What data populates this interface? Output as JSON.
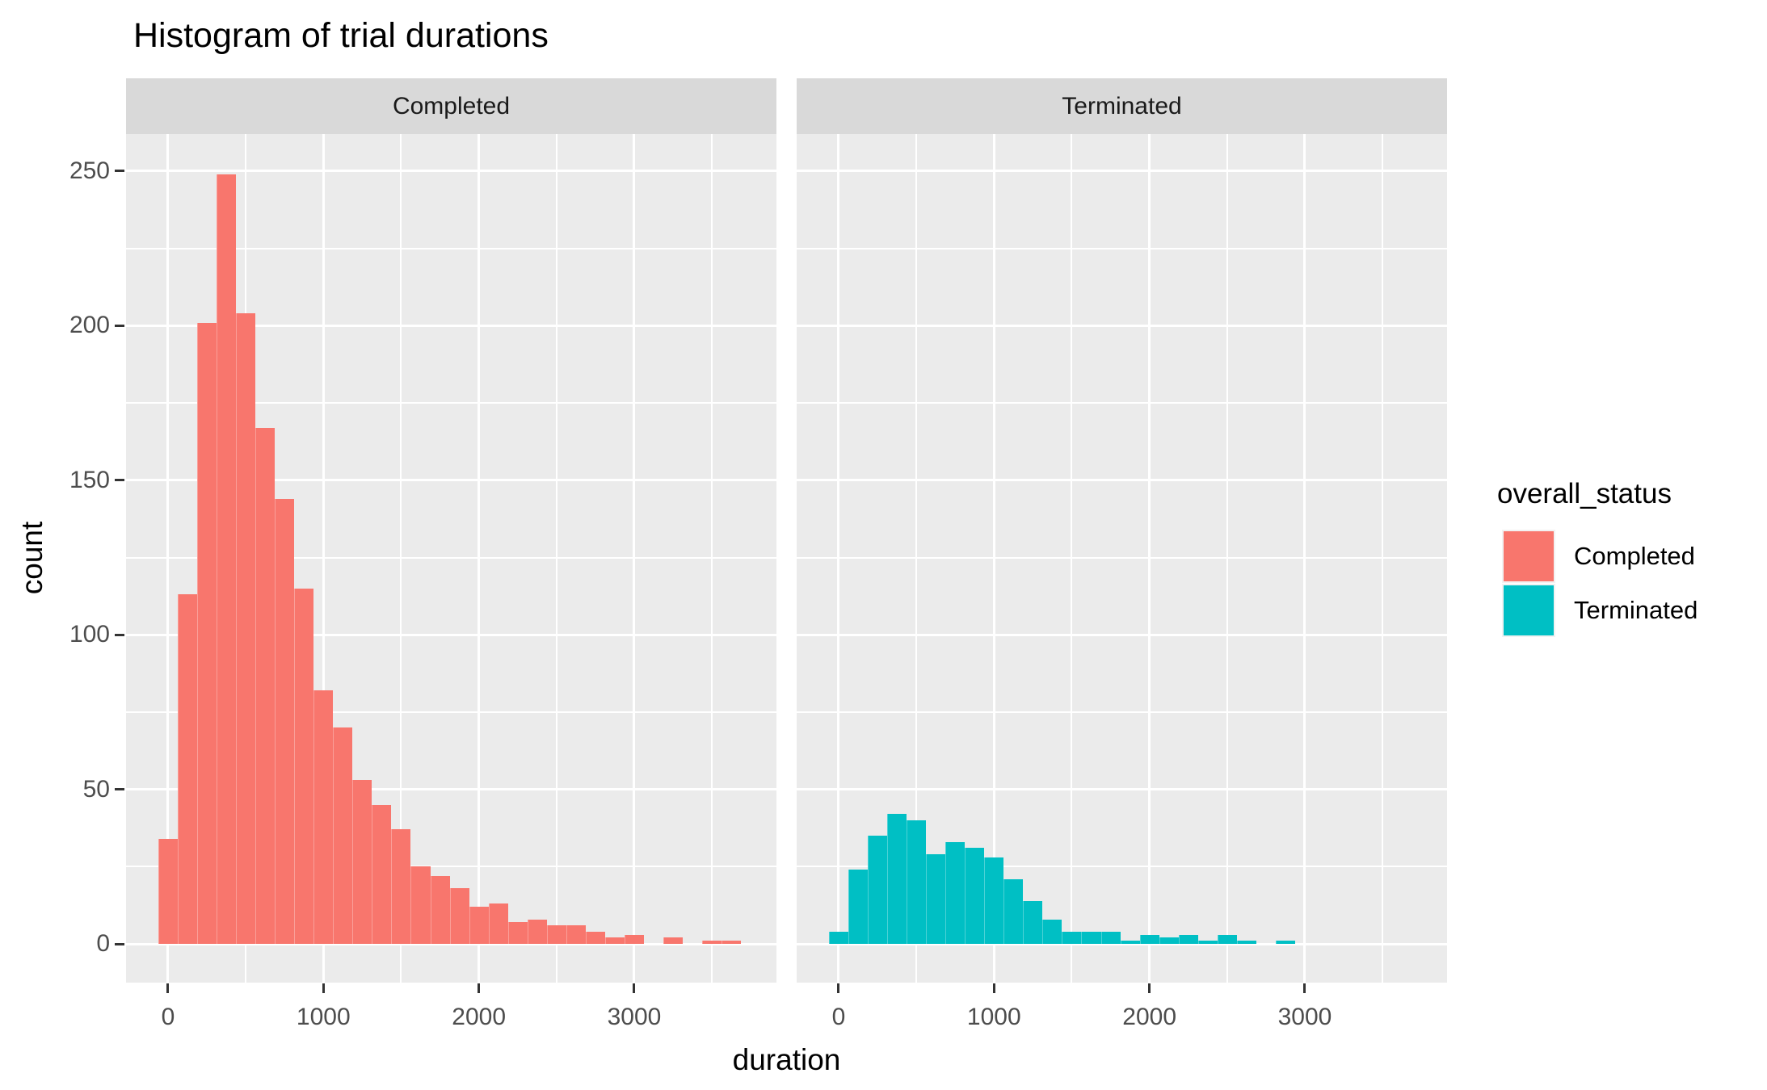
{
  "title": "Histogram of trial durations",
  "axes": {
    "x_title": "duration",
    "y_title": "count"
  },
  "strips": [
    "Completed",
    "Terminated"
  ],
  "legend": {
    "title": "overall_status",
    "entries": [
      {
        "label": "Completed",
        "color": "#F8766D"
      },
      {
        "label": "Terminated",
        "color": "#00BFC4"
      }
    ]
  },
  "colors": {
    "panel_background": "#EBEBEB",
    "strip_background": "#D9D9D9",
    "grid": "#FFFFFF",
    "tick_label": "#4D4D4D",
    "tick_mark": "#333333",
    "text": "#000000"
  },
  "chart_data": {
    "type": "bar",
    "subtype": "faceted-histogram",
    "title": "Histogram of trial durations",
    "xlabel": "duration",
    "ylabel": "count",
    "facet_variable": "overall_status",
    "facets": [
      "Completed",
      "Terminated"
    ],
    "binwidth": 125,
    "bin_centers": [
      0,
      125,
      250,
      375,
      500,
      625,
      750,
      875,
      1000,
      1125,
      1250,
      1375,
      1500,
      1625,
      1750,
      1875,
      2000,
      2125,
      2250,
      2375,
      2500,
      2625,
      2750,
      2875,
      3000,
      3125,
      3250,
      3375,
      3500,
      3625
    ],
    "series": [
      {
        "name": "Completed",
        "color": "#F8766D",
        "counts": [
          34,
          113,
          201,
          249,
          204,
          167,
          144,
          115,
          82,
          70,
          53,
          45,
          37,
          25,
          22,
          18,
          12,
          13,
          7,
          8,
          6,
          6,
          4,
          2,
          3,
          0,
          2,
          0,
          1,
          1
        ]
      },
      {
        "name": "Terminated",
        "color": "#00BFC4",
        "counts": [
          4,
          24,
          35,
          42,
          40,
          29,
          33,
          31,
          28,
          21,
          14,
          8,
          4,
          4,
          4,
          1,
          3,
          2,
          3,
          1,
          3,
          1,
          0,
          1,
          0,
          0,
          0,
          0,
          0,
          0
        ]
      }
    ],
    "x_ticks": [
      0,
      1000,
      2000,
      3000
    ],
    "x_minor": [
      500,
      1500,
      2500,
      3500
    ],
    "y_ticks": [
      0,
      50,
      100,
      150,
      200,
      250
    ],
    "y_minor": [
      25,
      75,
      125,
      175,
      225
    ],
    "xlim": [
      -270,
      3915
    ],
    "ylim": [
      -12.5,
      262
    ],
    "grid": true,
    "legend_position": "right"
  }
}
